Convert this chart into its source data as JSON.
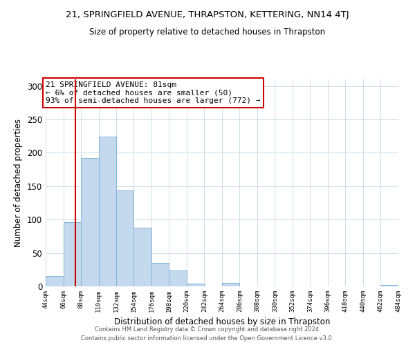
{
  "title": "21, SPRINGFIELD AVENUE, THRAPSTON, KETTERING, NN14 4TJ",
  "subtitle": "Size of property relative to detached houses in Thrapston",
  "xlabel": "Distribution of detached houses by size in Thrapston",
  "ylabel": "Number of detached properties",
  "bar_color": "#c5d9ee",
  "bar_edge_color": "#7fb3d9",
  "bins": [
    44,
    66,
    88,
    110,
    132,
    154,
    176,
    198,
    220,
    242,
    264,
    286,
    308,
    330,
    352,
    374,
    396,
    418,
    440,
    462,
    484
  ],
  "counts": [
    15,
    96,
    192,
    224,
    144,
    88,
    35,
    24,
    4,
    0,
    5,
    0,
    0,
    0,
    0,
    0,
    0,
    0,
    0,
    2
  ],
  "xlim": [
    44,
    484
  ],
  "ylim": [
    0,
    310
  ],
  "yticks": [
    0,
    50,
    100,
    150,
    200,
    250,
    300
  ],
  "property_line_x": 81,
  "property_line_color": "#cc0000",
  "annotation_text": "21 SPRINGFIELD AVENUE: 81sqm\n← 6% of detached houses are smaller (50)\n93% of semi-detached houses are larger (772) →",
  "annotation_box_color": "#ffffff",
  "annotation_box_edge_color": "#cc0000",
  "footer_line1": "Contains HM Land Registry data © Crown copyright and database right 2024.",
  "footer_line2": "Contains public sector information licensed under the Open Government Licence v3.0.",
  "background_color": "#ffffff",
  "grid_color": "#d0dce8"
}
